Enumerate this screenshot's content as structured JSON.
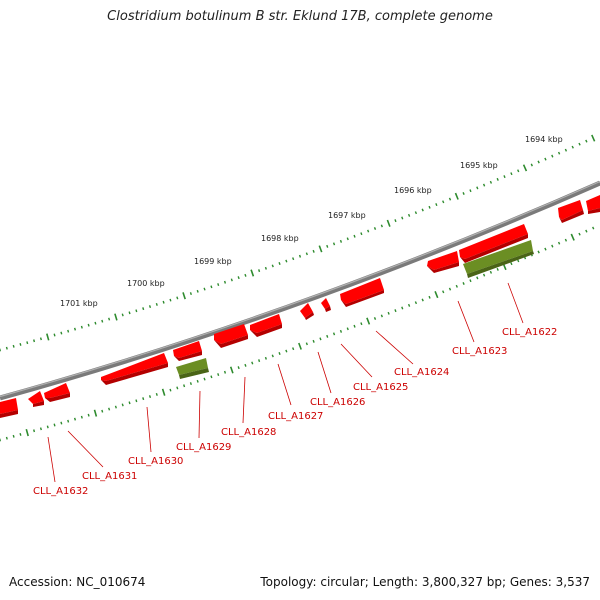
{
  "title": "Clostridium botulinum B str. Eklund 17B, complete genome",
  "scale_labels": [
    "1694 kbp",
    "1695 kbp",
    "1696 kbp",
    "1697 kbp",
    "1698 kbp",
    "1699 kbp",
    "1700 kbp",
    "1701 kbp"
  ],
  "genes": [
    {
      "label": "CLL_A1622",
      "color": "#6b8e23",
      "strand": "minus"
    },
    {
      "label": "CLL_A1623",
      "color": "#ff0000",
      "strand": "plus"
    },
    {
      "label": "CLL_A1624",
      "color": "#ff0000",
      "strand": "plus"
    },
    {
      "label": "CLL_A1625",
      "color": "#ff0000",
      "strand": "plus"
    },
    {
      "label": "CLL_A1626",
      "color": "#ff0000",
      "strand": "plus"
    },
    {
      "label": "CLL_A1627",
      "color": "#ff0000",
      "strand": "plus"
    },
    {
      "label": "CLL_A1628",
      "color": "#ff0000",
      "strand": "plus"
    },
    {
      "label": "CLL_A1629",
      "color": "#6b8e23",
      "strand": "minus"
    },
    {
      "label": "CLL_A1630",
      "color": "#ff0000",
      "strand": "plus"
    },
    {
      "label": "CLL_A1631",
      "color": "#ff0000",
      "strand": "plus"
    },
    {
      "label": "CLL_A1632",
      "color": "#ff0000",
      "strand": "plus"
    }
  ],
  "footer": {
    "accession": "Accession: NC_010674",
    "summary": "Topology: circular; Length: 3,800,327 bp; Genes: 3,537"
  },
  "colors": {
    "backbone": "#808080",
    "scale_ticks": "#2e8b2e",
    "forward_gene": "#ff0000",
    "reverse_gene": "#6b8e23",
    "gene_label": "#cc0000"
  }
}
